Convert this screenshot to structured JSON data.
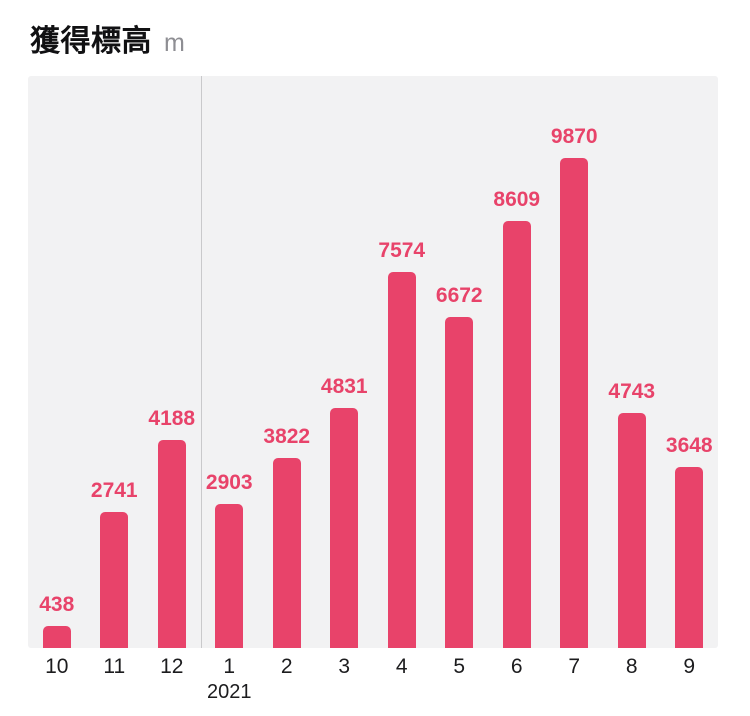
{
  "header": {
    "title": "獲得標高",
    "unit": "m"
  },
  "chart_data": {
    "type": "bar",
    "title": "獲得標高",
    "unit": "m",
    "categories": [
      "10",
      "11",
      "12",
      "1",
      "2",
      "3",
      "4",
      "5",
      "6",
      "7",
      "8",
      "9"
    ],
    "values": [
      438,
      2741,
      4188,
      2903,
      3822,
      4831,
      7574,
      6672,
      8609,
      9870,
      4743,
      3648
    ],
    "year_label": "2021",
    "year_start_index": 3,
    "ylim": [
      0,
      9870
    ],
    "grid": false,
    "legend": false,
    "bar_color": "#e8436a",
    "value_label_color": "#e8436a",
    "panel_background": "#f2f2f3",
    "divider_color": "#c9c9cb",
    "xlabel_color": "#1c1c1e"
  }
}
